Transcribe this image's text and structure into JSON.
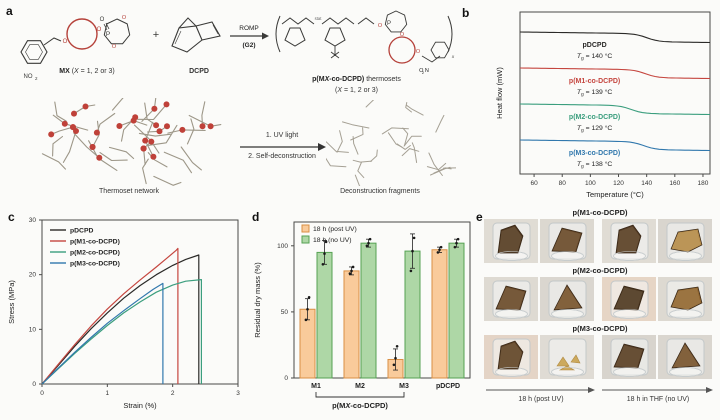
{
  "panel_a": {
    "letter": "a",
    "monomer_label": "**MX** (*X* = 1, 2 or 3)",
    "no2": "NO^2^",
    "o2n": "O^2^N",
    "plus": "+",
    "dcpd_label": "DCPD",
    "arrow_top": "ROMP",
    "arrow_bottom": "(**G2**)",
    "product_label": "**p(M*X*-co-DCPD)** thermosets",
    "product_sub": "(*X* = 1, 2 or 3)",
    "uv_step1": "1. UV light",
    "uv_step2": "2. Self-deconstruction",
    "network_caption": "Thermoset network",
    "fragments_caption": "Deconstruction fragments",
    "accent_red": "#b5413a"
  },
  "panel_b": {
    "letter": "b"
  },
  "panel_c": {
    "letter": "c"
  },
  "panel_d": {
    "letter": "d"
  },
  "panel_e": {
    "letter": "e",
    "rows": [
      {
        "label": "p(M1-co-DCPD)"
      },
      {
        "label": "p(M2-co-DCPD)"
      },
      {
        "label": "p(M3-co-DCPD)"
      }
    ],
    "left_caption": "18 h (post UV)",
    "right_caption": "18 h in THF (no UV)"
  },
  "chart_data": [
    {
      "id": "dsc",
      "type": "line",
      "title": "",
      "xlabel": "Temperature (°C)",
      "ylabel": "Heat flow (mW)",
      "xlim": [
        50,
        185
      ],
      "xticks": [
        60,
        80,
        100,
        120,
        140,
        160,
        180
      ],
      "frame": "box",
      "curve_shape": "flat exotherm traces with small step-down at Tg",
      "series": [
        {
          "name": "pDCPD",
          "tg_label": "Tg = 140 °C",
          "tg_c": 140,
          "color": "#2b2a28"
        },
        {
          "name": "p(M1-co-DCPD)",
          "tg_label": "Tg = 139 °C",
          "tg_c": 139,
          "color": "#c5463f"
        },
        {
          "name": "p(M2-co-DCPD)",
          "tg_label": "Tg = 129 °C",
          "tg_c": 129,
          "color": "#3b9e7e"
        },
        {
          "name": "p(M3-co-DCPD)",
          "tg_label": "Tg = 138 °C",
          "tg_c": 138,
          "color": "#3178ad"
        }
      ]
    },
    {
      "id": "stress_strain",
      "type": "line",
      "title": "",
      "xlabel": "Strain (%)",
      "ylabel": "Stress (MPa)",
      "xlim": [
        0,
        3
      ],
      "ylim": [
        0,
        30
      ],
      "xticks": [
        0,
        1,
        2,
        3
      ],
      "yticks": [
        0,
        10,
        20,
        30
      ],
      "frame": "box",
      "legend_position": "upper-left",
      "series": [
        {
          "name": "pDCPD",
          "color": "#2b2a28",
          "points": [
            [
              0,
              0
            ],
            [
              0.25,
              3.4
            ],
            [
              0.5,
              6.9
            ],
            [
              0.75,
              10.1
            ],
            [
              1.0,
              13.0
            ],
            [
              1.25,
              15.7
            ],
            [
              1.5,
              18.0
            ],
            [
              1.75,
              20.0
            ],
            [
              2.0,
              21.7
            ],
            [
              2.2,
              22.8
            ],
            [
              2.4,
              23.6
            ],
            [
              2.4,
              0
            ]
          ]
        },
        {
          "name": "p(M1-co-DCPD)",
          "color": "#c5463f",
          "points": [
            [
              0,
              0
            ],
            [
              0.25,
              3.6
            ],
            [
              0.5,
              7.2
            ],
            [
              0.75,
              10.6
            ],
            [
              1.0,
              13.7
            ],
            [
              1.25,
              16.5
            ],
            [
              1.5,
              19.0
            ],
            [
              1.75,
              21.4
            ],
            [
              1.9,
              22.9
            ],
            [
              2.05,
              24.4
            ],
            [
              2.08,
              24.8
            ],
            [
              2.08,
              0
            ]
          ]
        },
        {
          "name": "p(M2-co-DCPD)",
          "color": "#3b9e7e",
          "points": [
            [
              0,
              0
            ],
            [
              0.25,
              2.8
            ],
            [
              0.5,
              5.6
            ],
            [
              0.75,
              8.2
            ],
            [
              1.0,
              10.7
            ],
            [
              1.25,
              13.0
            ],
            [
              1.5,
              15.0
            ],
            [
              1.75,
              16.8
            ],
            [
              2.0,
              18.1
            ],
            [
              2.2,
              18.8
            ],
            [
              2.44,
              19.1
            ],
            [
              2.44,
              0
            ]
          ]
        },
        {
          "name": "p(M3-co-DCPD)",
          "color": "#3178ad",
          "points": [
            [
              0,
              0
            ],
            [
              0.25,
              2.9
            ],
            [
              0.5,
              5.8
            ],
            [
              0.75,
              8.5
            ],
            [
              1.0,
              11.1
            ],
            [
              1.25,
              13.4
            ],
            [
              1.5,
              15.6
            ],
            [
              1.7,
              17.3
            ],
            [
              1.85,
              18.4
            ],
            [
              1.85,
              0
            ]
          ]
        }
      ]
    },
    {
      "id": "residual_mass",
      "type": "bar",
      "title": "",
      "xlabel": "",
      "ylabel": "Residual dry mass (%)",
      "ylim": [
        0,
        118
      ],
      "yticks": [
        0,
        50,
        100
      ],
      "frame": "box",
      "categories": [
        "M1",
        "M2",
        "M3",
        "pDCPD"
      ],
      "group_bracket_label": "p(M*X*-co-DCPD)",
      "group_bracket_span": [
        "M1",
        "M3"
      ],
      "series": [
        {
          "name": "18 h (post UV)",
          "fill": "#f9cb9b",
          "stroke": "#d98f44",
          "values": [
            52,
            81,
            14,
            97
          ],
          "errors": [
            8,
            3,
            8,
            2
          ],
          "points": [
            [
              44,
              52,
              61
            ],
            [
              79,
              81,
              84
            ],
            [
              10,
              15,
              24
            ],
            [
              95,
              97,
              99
            ]
          ]
        },
        {
          "name": "18 h (no UV)",
          "fill": "#aed7a6",
          "stroke": "#56a253",
          "values": [
            95,
            102,
            96,
            102
          ],
          "errors": [
            9,
            3,
            13,
            3
          ],
          "points": [
            [
              86,
              94,
              103
            ],
            [
              100,
              102,
              105
            ],
            [
              81,
              96,
              106
            ],
            [
              99,
              102,
              105
            ]
          ]
        }
      ]
    }
  ]
}
